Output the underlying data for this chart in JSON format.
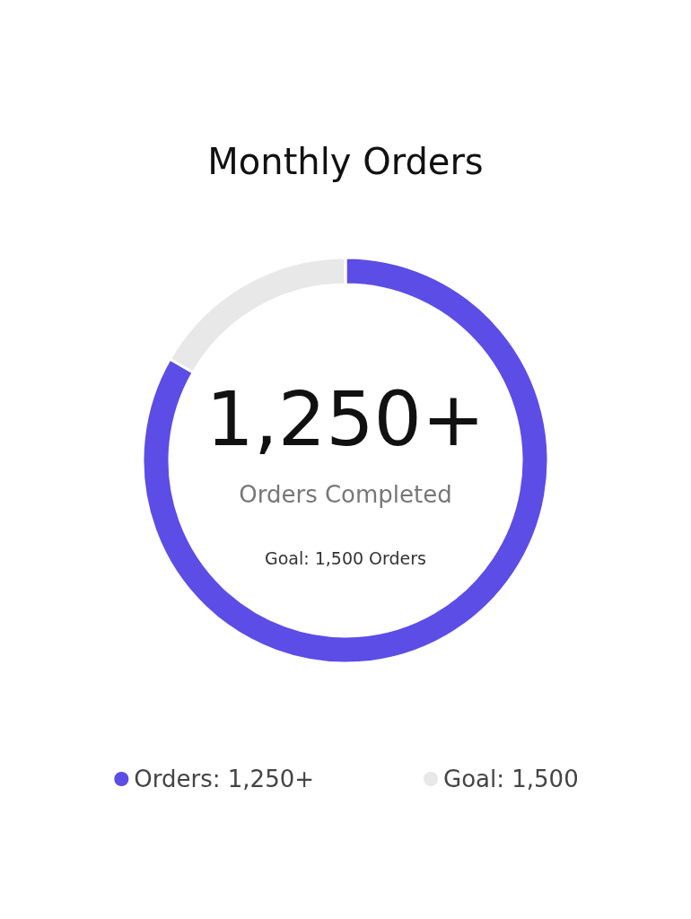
{
  "chart_data": {
    "type": "donut",
    "title": "Monthly Orders",
    "categories": [
      "Orders: 1,250+",
      "Goal: 1,500"
    ],
    "values": [
      1250,
      250
    ],
    "colors": [
      "#5b4de6",
      "#e8e8e8"
    ],
    "annotations": [
      "1,250+",
      "Orders Completed",
      "Goal: 1,500 Orders"
    ],
    "legend": "bottom"
  }
}
